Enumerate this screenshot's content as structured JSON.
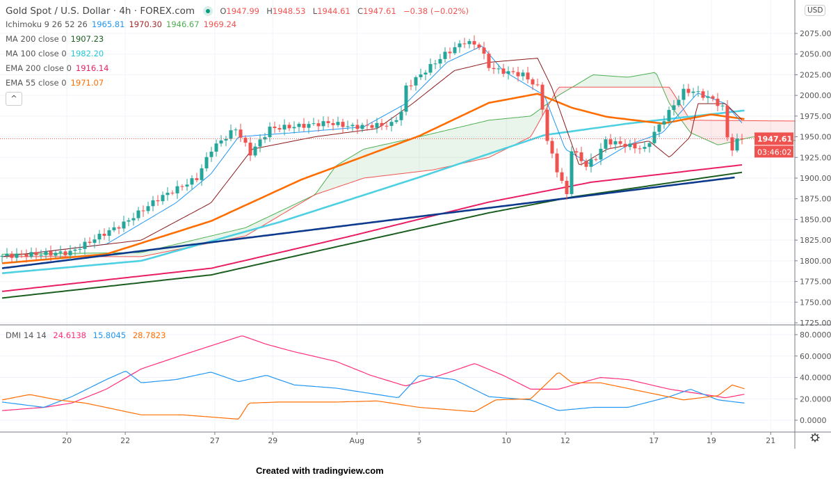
{
  "header": {
    "symbol": "Gold Spot / U.S. Dollar · 4h · FOREX.com",
    "o_label": "O",
    "o": "1947.99",
    "h_label": "H",
    "h": "1948.53",
    "l_label": "L",
    "l": "1944.61",
    "c_label": "C",
    "c": "1947.61",
    "change": "−0.38 (−0.02%)"
  },
  "indicators": [
    {
      "name": "Ichimoku 9 26 52 26",
      "values": [
        "1965.81",
        "1970.30",
        "1946.67",
        "1969.24"
      ],
      "colors": [
        "#2196f3",
        "#a52a2a",
        "#4caf50",
        "#f05350"
      ]
    },
    {
      "name": "MA 200 close 0",
      "values": [
        "1907.23"
      ],
      "colors": [
        "#1b5e20"
      ]
    },
    {
      "name": "MA 100 close 0",
      "values": [
        "1982.20"
      ],
      "colors": [
        "#26c6da"
      ]
    },
    {
      "name": "EMA 200 close 0",
      "values": [
        "1916.14"
      ],
      "colors": [
        "#e91e63"
      ]
    },
    {
      "name": "EMA 55 close 0",
      "values": [
        "1971.07"
      ],
      "colors": [
        "#ff6d00"
      ]
    }
  ],
  "collapse_label": "^",
  "currency": "USD",
  "last_price": "1947.61",
  "countdown": "03:46:02",
  "dmi": {
    "name": "DMI 14 14",
    "values": [
      "24.6138",
      "15.8045",
      "28.7823"
    ],
    "colors": [
      "#ff2d7a",
      "#2196f3",
      "#ff6d00"
    ]
  },
  "credit": "Created with tradingview.com",
  "chart_data": {
    "type": "candlestick",
    "title": "Gold Spot / U.S. Dollar · 4h · FOREX.com",
    "x_ticks": [
      {
        "bar": 13.3,
        "label": "20"
      },
      {
        "bar": 25.3,
        "label": "22"
      },
      {
        "bar": 43.7,
        "label": "27"
      },
      {
        "bar": 55.6,
        "label": "29"
      },
      {
        "bar": 72.9,
        "label": "Aug"
      },
      {
        "bar": 85.7,
        "label": "5"
      },
      {
        "bar": 103.6,
        "label": "10"
      },
      {
        "bar": 115.7,
        "label": "12"
      },
      {
        "bar": 133.9,
        "label": "17"
      },
      {
        "bar": 145.7,
        "label": "19"
      },
      {
        "bar": 157.9,
        "label": "21"
      }
    ],
    "y_ticks": [
      "2075.00",
      "2050.00",
      "2025.00",
      "2000.00",
      "1975.00",
      "1950.00",
      "1925.00",
      "1900.00",
      "1875.00",
      "1850.00",
      "1825.00",
      "1800.00",
      "1775.00",
      "1750.00",
      "1725.00"
    ],
    "ylim": [
      1725,
      2087
    ],
    "close_path": [
      [
        0,
        1806
      ],
      [
        14,
        1810
      ],
      [
        20,
        1830
      ],
      [
        25,
        1845
      ],
      [
        32,
        1875
      ],
      [
        40,
        1900
      ],
      [
        43,
        1935
      ],
      [
        48,
        1960
      ],
      [
        51,
        1930
      ],
      [
        55,
        1960
      ],
      [
        61,
        1963
      ],
      [
        67,
        1967
      ],
      [
        72,
        1962
      ],
      [
        80,
        1965
      ],
      [
        82,
        1980
      ],
      [
        83,
        2010
      ],
      [
        87,
        2030
      ],
      [
        91,
        2050
      ],
      [
        95,
        2065
      ],
      [
        98,
        2060
      ],
      [
        100,
        2035
      ],
      [
        102,
        2030
      ],
      [
        107,
        2025
      ],
      [
        110,
        2010
      ],
      [
        111,
        1985
      ],
      [
        112,
        1945
      ],
      [
        114,
        1910
      ],
      [
        116,
        1880
      ],
      [
        117,
        1935
      ],
      [
        120,
        1915
      ],
      [
        122,
        1925
      ],
      [
        124,
        1945
      ],
      [
        128,
        1940
      ],
      [
        132,
        1935
      ],
      [
        134,
        1955
      ],
      [
        137,
        1980
      ],
      [
        140,
        2005
      ],
      [
        142,
        2005
      ],
      [
        146,
        1995
      ],
      [
        148,
        1985
      ],
      [
        149,
        1950
      ],
      [
        150,
        1935
      ],
      [
        151,
        1945
      ],
      [
        152,
        1947.61
      ]
    ],
    "series": [
      {
        "name": "MA 200",
        "color": "#1b5e20",
        "points": [
          [
            0,
            1755
          ],
          [
            43,
            1783
          ],
          [
            71,
            1820
          ],
          [
            100,
            1858
          ],
          [
            117,
            1877
          ],
          [
            152,
            1907
          ]
        ]
      },
      {
        "name": "EMA 200",
        "color": "#e91e63",
        "points": [
          [
            0,
            1763
          ],
          [
            43,
            1791
          ],
          [
            71,
            1829
          ],
          [
            100,
            1871
          ],
          [
            121,
            1895
          ],
          [
            152,
            1916
          ]
        ]
      },
      {
        "name": "MA 100",
        "color": "#4dd0e1",
        "points": [
          [
            0,
            1785
          ],
          [
            28.6,
            1800
          ],
          [
            57.1,
            1847
          ],
          [
            85.7,
            1901
          ],
          [
            111.4,
            1952
          ],
          [
            128.6,
            1966
          ],
          [
            152.9,
            1982
          ]
        ]
      },
      {
        "name": "EMA 55",
        "color": "#ff6d00",
        "points": [
          [
            0,
            1797
          ],
          [
            21.4,
            1808
          ],
          [
            42.9,
            1848
          ],
          [
            61.4,
            1898
          ],
          [
            85.7,
            1951
          ],
          [
            100,
            1991
          ],
          [
            110,
            2002
          ],
          [
            117.1,
            1985
          ],
          [
            124.3,
            1974
          ],
          [
            135.7,
            1966
          ],
          [
            145.7,
            1977
          ],
          [
            152.9,
            1971
          ]
        ]
      },
      {
        "name": "Trend line",
        "color": "#0d3a8c",
        "points": [
          [
            0,
            1791
          ],
          [
            150.7,
            1901
          ]
        ]
      },
      {
        "name": "Ichimoku conversion",
        "color": "#2196f3",
        "points": [
          [
            0,
            1805
          ],
          [
            21.4,
            1820
          ],
          [
            35.7,
            1870
          ],
          [
            42.9,
            1905
          ],
          [
            48.6,
            1950
          ],
          [
            60,
            1955
          ],
          [
            74.3,
            1962
          ],
          [
            82.9,
            1990
          ],
          [
            91.4,
            2040
          ],
          [
            98.6,
            2060
          ],
          [
            102.9,
            2030
          ],
          [
            111.4,
            2000
          ],
          [
            115.7,
            1935
          ],
          [
            121.4,
            1915
          ],
          [
            128.6,
            1940
          ],
          [
            135.7,
            1955
          ],
          [
            142.9,
            2003
          ],
          [
            148.6,
            1990
          ],
          [
            152.1,
            1966
          ]
        ]
      },
      {
        "name": "Ichimoku base",
        "color": "#8b1a1a",
        "points": [
          [
            0,
            1805
          ],
          [
            28.6,
            1825
          ],
          [
            42.9,
            1870
          ],
          [
            51.4,
            1935
          ],
          [
            64.3,
            1950
          ],
          [
            77.1,
            1960
          ],
          [
            84.3,
            1990
          ],
          [
            92.9,
            2030
          ],
          [
            100,
            2040
          ],
          [
            110,
            2045
          ],
          [
            112.9,
            2010
          ],
          [
            118.6,
            1915
          ],
          [
            124.3,
            1935
          ],
          [
            132.9,
            1945
          ],
          [
            137.1,
            1925
          ],
          [
            141.4,
            1950
          ],
          [
            142.9,
            1990
          ],
          [
            148.6,
            1990
          ],
          [
            152.1,
            1970
          ]
        ]
      }
    ],
    "cloud": {
      "span_a": [
        [
          0,
          1808
        ],
        [
          28.6,
          1810
        ],
        [
          50,
          1840
        ],
        [
          64.3,
          1880
        ],
        [
          68.6,
          1915
        ],
        [
          74.3,
          1935
        ],
        [
          85.7,
          1950
        ],
        [
          100,
          1970
        ],
        [
          108.6,
          1975
        ],
        [
          114.3,
          2000
        ],
        [
          121.4,
          2025
        ],
        [
          128.6,
          2022
        ],
        [
          134.3,
          2028
        ],
        [
          137.1,
          1990
        ],
        [
          141.4,
          1955
        ],
        [
          147.1,
          1940
        ],
        [
          154.3,
          1950
        ],
        [
          163.3,
          1945
        ]
      ],
      "span_b": [
        [
          0,
          1805
        ],
        [
          28.6,
          1805
        ],
        [
          50,
          1830
        ],
        [
          64.3,
          1880
        ],
        [
          74.3,
          1900
        ],
        [
          88.6,
          1910
        ],
        [
          100,
          1925
        ],
        [
          108.6,
          1950
        ],
        [
          114.3,
          2010
        ],
        [
          137.1,
          2010
        ],
        [
          141.4,
          1970
        ],
        [
          163.3,
          1969
        ]
      ],
      "bull_color": "#4caf50",
      "bear_color": "#f05350"
    },
    "dmi_series": [
      {
        "name": "DI+",
        "color": "#ff2d7a",
        "points": [
          [
            0,
            9
          ],
          [
            8.6,
            12
          ],
          [
            14.3,
            16
          ],
          [
            21.4,
            29
          ],
          [
            28.6,
            48
          ],
          [
            37.1,
            61
          ],
          [
            49.3,
            79
          ],
          [
            54.3,
            71
          ],
          [
            60,
            64
          ],
          [
            68.6,
            55
          ],
          [
            75.7,
            42
          ],
          [
            82.9,
            32
          ],
          [
            90,
            42
          ],
          [
            97.1,
            53
          ],
          [
            102.9,
            42
          ],
          [
            108.6,
            29
          ],
          [
            114.3,
            29
          ],
          [
            122.9,
            40
          ],
          [
            128.6,
            38
          ],
          [
            137.1,
            29
          ],
          [
            142.9,
            25
          ],
          [
            148.6,
            21
          ],
          [
            152.9,
            24.6
          ]
        ]
      },
      {
        "name": "DI-",
        "color": "#2196f3",
        "points": [
          [
            0,
            17
          ],
          [
            8.6,
            12
          ],
          [
            14.3,
            22
          ],
          [
            21.4,
            38
          ],
          [
            25.4,
            46
          ],
          [
            28.6,
            35
          ],
          [
            35.7,
            38
          ],
          [
            42.9,
            45
          ],
          [
            48.6,
            36
          ],
          [
            54.3,
            42
          ],
          [
            60,
            33
          ],
          [
            68.6,
            30
          ],
          [
            75.7,
            25
          ],
          [
            81.4,
            21
          ],
          [
            85.7,
            42
          ],
          [
            92.9,
            38
          ],
          [
            100,
            22
          ],
          [
            108.6,
            19
          ],
          [
            114.3,
            9
          ],
          [
            121.4,
            12
          ],
          [
            128.6,
            12
          ],
          [
            137.1,
            22
          ],
          [
            141.4,
            29
          ],
          [
            147.1,
            19
          ],
          [
            152.9,
            15.8
          ]
        ]
      },
      {
        "name": "ADX",
        "color": "#ff6d00",
        "points": [
          [
            0,
            19
          ],
          [
            5.7,
            24
          ],
          [
            11.4,
            19
          ],
          [
            17.1,
            16
          ],
          [
            28.6,
            5
          ],
          [
            37.1,
            5
          ],
          [
            48.6,
            1
          ],
          [
            50.7,
            16
          ],
          [
            57.1,
            17
          ],
          [
            68.6,
            17
          ],
          [
            77.1,
            18
          ],
          [
            85.7,
            12
          ],
          [
            97.1,
            8
          ],
          [
            101.4,
            19
          ],
          [
            108.6,
            20
          ],
          [
            114.3,
            45
          ],
          [
            117.1,
            35
          ],
          [
            122.9,
            35
          ],
          [
            131.4,
            27
          ],
          [
            140,
            19
          ],
          [
            147.1,
            23
          ],
          [
            150,
            33
          ],
          [
            152.9,
            28.8
          ]
        ]
      }
    ],
    "dmi_ticks": [
      "80.0000",
      "60.0000",
      "40.0000",
      "20.0000",
      "0.0000"
    ],
    "dmi_ylim": [
      0,
      80
    ]
  }
}
